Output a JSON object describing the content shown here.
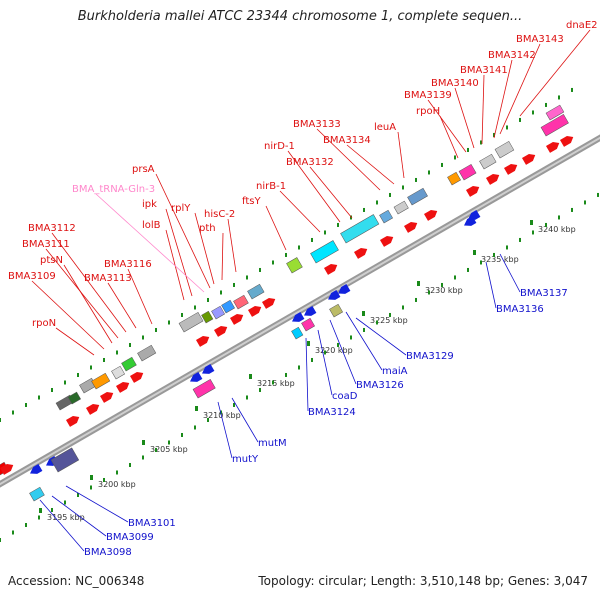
{
  "title": "Burkholderia mallei ATCC 23344 chromosome 1, complete sequen...",
  "accession": "Accession: NC_006348",
  "summary": "Topology: circular; Length: 3,510,148 bp; Genes: 3,047",
  "colors": {
    "backbone": "#aaaaaa",
    "tick_dots": "#1a8a1a",
    "top_label": "#dd1111",
    "bottom_label": "#1111cc",
    "trna_label": "#ff88cc"
  },
  "scale_ticks": [
    "3195 kbp",
    "3200 kbp",
    "3205 kbp",
    "3210 kbp",
    "3215 kbp",
    "3220 kbp",
    "3225 kbp",
    "3230 kbp",
    "3235 kbp",
    "3240 kbp"
  ],
  "top_genes": [
    "rpoN",
    "BMA3109",
    "ptsN",
    "BMA3111",
    "BMA3112",
    "BMA3113",
    "BMA3116",
    "lolB",
    "ipk",
    "BMA_tRNA-Gln-3",
    "prsA",
    "rplY",
    "pth",
    "hisC-2",
    "ftsY",
    "nirB-1",
    "nirD-1",
    "BMA3132",
    "BMA3133",
    "BMA3134",
    "leuA",
    "rpoH",
    "BMA3139",
    "BMA3140",
    "BMA3141",
    "BMA3142",
    "BMA3143",
    "dnaE2"
  ],
  "bottom_genes": [
    "BMA3098",
    "BMA3099",
    "BMA3101",
    "mutY",
    "mutM",
    "BMA3124",
    "coaD",
    "BMA3126",
    "maiA",
    "BMA3129",
    "BMA3136",
    "BMA3137"
  ]
}
